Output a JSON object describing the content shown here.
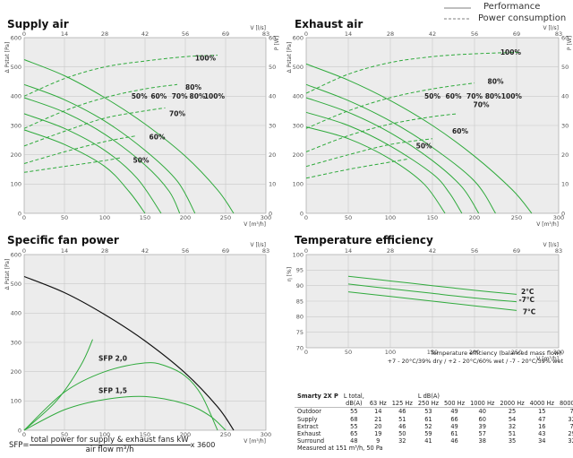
{
  "legend": {
    "performance": "Performance",
    "power": "Power consumption"
  },
  "colors": {
    "performance": "#2faa3c",
    "power": "#2faa3c",
    "sfp_limit": "#111111",
    "grid": "#c8c8c8",
    "plot_bg": "#ececec",
    "tick": "#666666"
  },
  "chart_data": [
    {
      "id": "supply",
      "type": "line",
      "title": "Supply air",
      "xlabel": "V [m³/h]",
      "x2label": "V [l/s]",
      "ylabel": "Δ Pstat [Pa]",
      "y2label": "P [W]",
      "xlim": [
        0,
        300
      ],
      "ylim": [
        0,
        600
      ],
      "y2lim": [
        0,
        60
      ],
      "grid": true,
      "x_ticks": [
        0,
        50,
        100,
        150,
        200,
        250,
        300
      ],
      "x2_ticks": [
        "0",
        "14",
        "28",
        "42",
        "56",
        "69",
        "83"
      ],
      "y_ticks": [
        0,
        100,
        200,
        300,
        400,
        500,
        600
      ],
      "y2_ticks": [
        0,
        10,
        20,
        30,
        40,
        50,
        60
      ],
      "performance": [
        {
          "label": "100%",
          "points": [
            [
              0,
              525
            ],
            [
              50,
              470
            ],
            [
              100,
              395
            ],
            [
              150,
              305
            ],
            [
              200,
              195
            ],
            [
              240,
              80
            ],
            [
              260,
              0
            ]
          ]
        },
        {
          "label": "80%",
          "points": [
            [
              0,
              440
            ],
            [
              50,
              388
            ],
            [
              100,
              315
            ],
            [
              150,
              215
            ],
            [
              190,
              110
            ],
            [
              212,
              0
            ]
          ]
        },
        {
          "label": "70%",
          "points": [
            [
              0,
              395
            ],
            [
              50,
              345
            ],
            [
              100,
              270
            ],
            [
              150,
              165
            ],
            [
              180,
              75
            ],
            [
              193,
              0
            ]
          ]
        },
        {
          "label": "60%",
          "points": [
            [
              0,
              340
            ],
            [
              50,
              290
            ],
            [
              100,
              215
            ],
            [
              140,
              120
            ],
            [
              170,
              0
            ]
          ]
        },
        {
          "label": "50%",
          "points": [
            [
              0,
              285
            ],
            [
              50,
              235
            ],
            [
              100,
              160
            ],
            [
              130,
              75
            ],
            [
              150,
              0
            ]
          ]
        }
      ],
      "power": [
        {
          "label": "100%",
          "points": [
            [
              0,
              40
            ],
            [
              50,
              46
            ],
            [
              100,
              50
            ],
            [
              150,
              52
            ],
            [
              200,
              53.5
            ],
            [
              240,
              54
            ]
          ]
        },
        {
          "label": "80%",
          "points": [
            [
              0,
              29
            ],
            [
              50,
              35
            ],
            [
              100,
              39.5
            ],
            [
              150,
              42.5
            ],
            [
              190,
              44
            ]
          ]
        },
        {
          "label": "70%",
          "points": [
            [
              0,
              23
            ],
            [
              50,
              28
            ],
            [
              100,
              32.5
            ],
            [
              150,
              35
            ],
            [
              175,
              36
            ]
          ]
        },
        {
          "label": "60%",
          "points": [
            [
              0,
              17
            ],
            [
              50,
              21
            ],
            [
              100,
              24.5
            ],
            [
              140,
              26.5
            ]
          ]
        },
        {
          "label": "50%",
          "points": [
            [
              0,
              14
            ],
            [
              50,
              16
            ],
            [
              100,
              18
            ],
            [
              120,
              19
            ]
          ]
        }
      ],
      "labels": [
        {
          "text": "100%",
          "x": 225,
          "y": 53
        },
        {
          "text": "80%",
          "x": 210,
          "y": 43
        },
        {
          "text": "70%",
          "x": 190,
          "y": 34
        },
        {
          "text": "60%",
          "x": 165,
          "y": 26
        },
        {
          "text": "50%",
          "x": 145,
          "y": 18
        },
        {
          "text": "50%",
          "x": 143,
          "y": 40
        },
        {
          "text": "60%",
          "x": 167,
          "y": 40
        },
        {
          "text": "70%",
          "x": 193,
          "y": 40
        },
        {
          "text": "80%",
          "x": 215,
          "y": 40
        },
        {
          "text": "100%",
          "x": 236,
          "y": 40
        }
      ]
    },
    {
      "id": "exhaust",
      "type": "line",
      "title": "Exhaust air",
      "xlabel": "V [m³/h]",
      "x2label": "V [l/s]",
      "ylabel": "Δ Pstat [Pa]",
      "y2label": "P [W]",
      "xlim": [
        0,
        300
      ],
      "ylim": [
        0,
        600
      ],
      "y2lim": [
        0,
        60
      ],
      "grid": true,
      "x_ticks": [
        0,
        50,
        100,
        150,
        200,
        250,
        300
      ],
      "x2_ticks": [
        "0",
        "14",
        "28",
        "42",
        "56",
        "69",
        "83"
      ],
      "y_ticks": [
        0,
        100,
        200,
        300,
        400,
        500,
        600
      ],
      "y2_ticks": [
        0,
        10,
        20,
        30,
        40,
        50,
        60
      ],
      "performance": [
        {
          "label": "100%",
          "points": [
            [
              0,
              510
            ],
            [
              50,
              455
            ],
            [
              100,
              385
            ],
            [
              150,
              300
            ],
            [
              200,
              195
            ],
            [
              245,
              80
            ],
            [
              268,
              0
            ]
          ]
        },
        {
          "label": "80%",
          "points": [
            [
              0,
              440
            ],
            [
              50,
              385
            ],
            [
              100,
              315
            ],
            [
              150,
              225
            ],
            [
              200,
              110
            ],
            [
              225,
              0
            ]
          ]
        },
        {
          "label": "70%",
          "points": [
            [
              0,
              395
            ],
            [
              50,
              345
            ],
            [
              100,
              275
            ],
            [
              150,
              180
            ],
            [
              185,
              90
            ],
            [
              205,
              0
            ]
          ]
        },
        {
          "label": "60%",
          "points": [
            [
              0,
              345
            ],
            [
              50,
              300
            ],
            [
              100,
              230
            ],
            [
              150,
              135
            ],
            [
              170,
              70
            ],
            [
              185,
              0
            ]
          ]
        },
        {
          "label": "50%",
          "points": [
            [
              0,
              295
            ],
            [
              50,
              255
            ],
            [
              100,
              185
            ],
            [
              140,
              100
            ],
            [
              165,
              0
            ]
          ]
        }
      ],
      "power": [
        {
          "label": "100%",
          "points": [
            [
              0,
              41
            ],
            [
              50,
              47.5
            ],
            [
              100,
              51.5
            ],
            [
              150,
              53.5
            ],
            [
              200,
              54.5
            ],
            [
              255,
              55
            ]
          ]
        },
        {
          "label": "80%",
          "points": [
            [
              0,
              29
            ],
            [
              50,
              35
            ],
            [
              100,
              39.5
            ],
            [
              150,
              42.5
            ],
            [
              200,
              44.5
            ]
          ]
        },
        {
          "label": "70%",
          "points": [
            [
              0,
              21
            ],
            [
              50,
              26.5
            ],
            [
              100,
              30.5
            ],
            [
              150,
              33
            ],
            [
              180,
              34
            ]
          ]
        },
        {
          "label": "60%",
          "points": [
            [
              0,
              16
            ],
            [
              50,
              20
            ],
            [
              100,
              23.5
            ],
            [
              150,
              25.5
            ]
          ]
        },
        {
          "label": "50%",
          "points": [
            [
              0,
              12
            ],
            [
              50,
              15
            ],
            [
              100,
              17.5
            ],
            [
              120,
              18.5
            ]
          ]
        }
      ],
      "labels": [
        {
          "text": "100%",
          "x": 243,
          "y": 55
        },
        {
          "text": "80%",
          "x": 225,
          "y": 45
        },
        {
          "text": "70%",
          "x": 208,
          "y": 37
        },
        {
          "text": "60%",
          "x": 183,
          "y": 28
        },
        {
          "text": "50%",
          "x": 140,
          "y": 23
        },
        {
          "text": "50%",
          "x": 150,
          "y": 40
        },
        {
          "text": "60%",
          "x": 175,
          "y": 40
        },
        {
          "text": "70%",
          "x": 200,
          "y": 40
        },
        {
          "text": "80%",
          "x": 222,
          "y": 40
        },
        {
          "text": "100%",
          "x": 244,
          "y": 40
        }
      ]
    },
    {
      "id": "sfp",
      "type": "line",
      "title": "Specific fan power",
      "xlabel": "V [m³/h]",
      "x2label": "V [l/s]",
      "ylabel": "Δ Pstat [Pa]",
      "xlim": [
        0,
        300
      ],
      "ylim": [
        0,
        600
      ],
      "grid": true,
      "x_ticks": [
        0,
        50,
        100,
        150,
        200,
        250,
        300
      ],
      "x2_ticks": [
        "0",
        "14",
        "28",
        "42",
        "56",
        "69",
        "83"
      ],
      "y_ticks": [
        0,
        100,
        200,
        300,
        400,
        500,
        600
      ],
      "limit_curve": {
        "points": [
          [
            0,
            525
          ],
          [
            50,
            470
          ],
          [
            100,
            395
          ],
          [
            150,
            305
          ],
          [
            200,
            195
          ],
          [
            240,
            80
          ],
          [
            260,
            0
          ]
        ]
      },
      "sfp_curves": [
        {
          "label": "SFP 2,0",
          "points": [
            [
              0,
              0
            ],
            [
              50,
              130
            ],
            [
              100,
              200
            ],
            [
              150,
              230
            ],
            [
              175,
              220
            ],
            [
              200,
              185
            ],
            [
              220,
              120
            ],
            [
              240,
              0
            ]
          ]
        },
        {
          "label": "SFP 1,5",
          "points": [
            [
              0,
              0
            ],
            [
              50,
              70
            ],
            [
              100,
              105
            ],
            [
              150,
              115
            ],
            [
              200,
              90
            ],
            [
              230,
              50
            ],
            [
              250,
              0
            ]
          ]
        },
        {
          "label": "",
          "points": [
            [
              0,
              0
            ],
            [
              40,
              100
            ],
            [
              70,
              220
            ],
            [
              85,
              310
            ]
          ]
        }
      ],
      "labels": [
        {
          "text": "SFP 2,0",
          "x": 110,
          "y": 245
        },
        {
          "text": "SFP 1,5",
          "x": 110,
          "y": 135
        }
      ]
    },
    {
      "id": "temp",
      "type": "line",
      "title": "Temperature efficiency",
      "xlabel": "V [m³/h]",
      "x2label": "V [l/s]",
      "ylabel": "η [%]",
      "xlim": [
        0,
        300
      ],
      "ylim": [
        70,
        100
      ],
      "grid": true,
      "x_ticks": [
        0,
        50,
        100,
        150,
        200,
        250,
        300
      ],
      "x2_ticks": [
        "0",
        "14",
        "28",
        "42",
        "56",
        "69",
        "83"
      ],
      "y_ticks": [
        70,
        75,
        80,
        85,
        90,
        95,
        100
      ],
      "series": [
        {
          "name": "2°C",
          "points": [
            [
              50,
              93
            ],
            [
              100,
              91.5
            ],
            [
              150,
              90
            ],
            [
              200,
              88.5
            ],
            [
              250,
              87.2
            ]
          ]
        },
        {
          "name": "-7°C",
          "points": [
            [
              50,
              90.5
            ],
            [
              100,
              89
            ],
            [
              150,
              87.5
            ],
            [
              200,
              86
            ],
            [
              250,
              84.8
            ]
          ]
        },
        {
          "name": "7°C",
          "points": [
            [
              50,
              88
            ],
            [
              100,
              86.5
            ],
            [
              150,
              85
            ],
            [
              200,
              83.5
            ],
            [
              250,
              82
            ]
          ]
        }
      ],
      "labels": [
        {
          "text": "2°C",
          "x": 263,
          "y": 88
        },
        {
          "text": "-7°C",
          "x": 262,
          "y": 85.5
        },
        {
          "text": "7°C",
          "x": 265,
          "y": 81.5
        }
      ]
    }
  ],
  "temp_note": {
    "line1": "Temperature efficiency (balanced mass flow):",
    "line2": "+7 - 20°C/39% dry / +2 - 20°C/60% wet / -7 - 20°C/39% wet"
  },
  "noise_table": {
    "model": "Smarty 2X P",
    "total_header": "L total,",
    "total_unit": "dB(A)",
    "oct_header": "L dB(A)",
    "bands": [
      "63 Hz",
      "125 Hz",
      "250 Hz",
      "500 Hz",
      "1000 Hz",
      "2000 Hz",
      "4000 Hz",
      "8000 Hz"
    ],
    "rows": [
      {
        "name": "Outdoor",
        "total": "55",
        "values": [
          "14",
          "46",
          "53",
          "49",
          "40",
          "25",
          "15",
          "7"
        ]
      },
      {
        "name": "Supply",
        "total": "68",
        "values": [
          "21",
          "51",
          "61",
          "66",
          "60",
          "54",
          "47",
          "32"
        ]
      },
      {
        "name": "Extract",
        "total": "55",
        "values": [
          "20",
          "46",
          "52",
          "49",
          "39",
          "32",
          "16",
          "7"
        ]
      },
      {
        "name": "Exhaust",
        "total": "65",
        "values": [
          "19",
          "50",
          "59",
          "61",
          "57",
          "51",
          "43",
          "29"
        ]
      },
      {
        "name": "Surround",
        "total": "48",
        "values": [
          "9",
          "32",
          "41",
          "46",
          "38",
          "35",
          "34",
          "32"
        ]
      }
    ],
    "footnote": "Measured at 151 m³/h, 50 Pa"
  },
  "sfp_formula": {
    "lhs": "SFP=",
    "numerator": "total power for supply & exhaust fans kW",
    "denominator": "air flow m³/h",
    "factor": "x 3600"
  }
}
